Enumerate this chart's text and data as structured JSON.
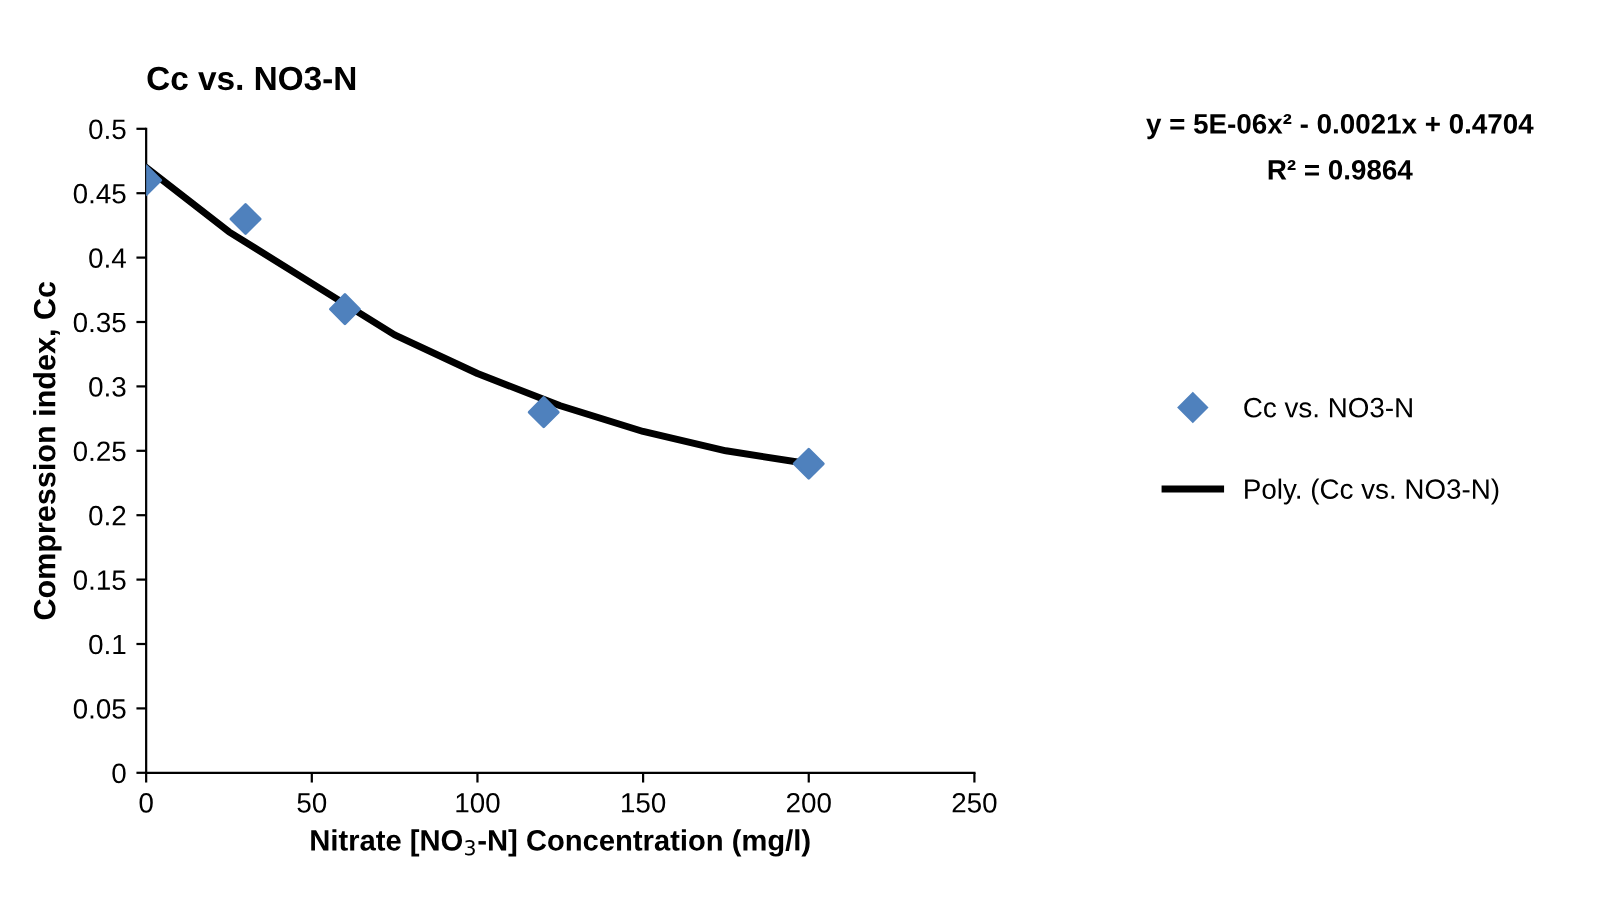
{
  "chart_data": {
    "type": "scatter",
    "title": "Cc vs. NO3-N",
    "xlabel": "Nitrate [NO$_{3}$-N] Concentration (mg/l)",
    "ylabel": "Compression index, Cc",
    "annotations": [
      "y = 5E-06x² - 0.0021x + 0.4704",
      "R² = 0.9864"
    ],
    "series": [
      {
        "name": "Cc vs. NO3-N",
        "color": "#4f81bd",
        "marker": "diamond",
        "x": [
          0,
          30,
          60,
          120,
          200
        ],
        "values": [
          0.46,
          0.43,
          0.36,
          0.28,
          0.24
        ]
      },
      {
        "name": "Poly. (Cc vs. NO3-N)",
        "type": "line",
        "color": "#000000",
        "line_style": "solid",
        "x": [
          0,
          25,
          50,
          75,
          100,
          125,
          150,
          175,
          200
        ],
        "values": [
          0.47,
          0.42,
          0.38,
          0.34,
          0.31,
          0.285,
          0.265,
          0.25,
          0.24
        ]
      }
    ],
    "xlim": [
      0,
      250
    ],
    "xticks": [
      0,
      50,
      100,
      150,
      200,
      250
    ],
    "ylim": [
      0,
      0.5
    ],
    "yticks": [
      0,
      0.05,
      0.1,
      0.15,
      0.2,
      0.25,
      0.3,
      0.35,
      0.4,
      0.45,
      0.5
    ],
    "grid": false,
    "legend": "right"
  }
}
